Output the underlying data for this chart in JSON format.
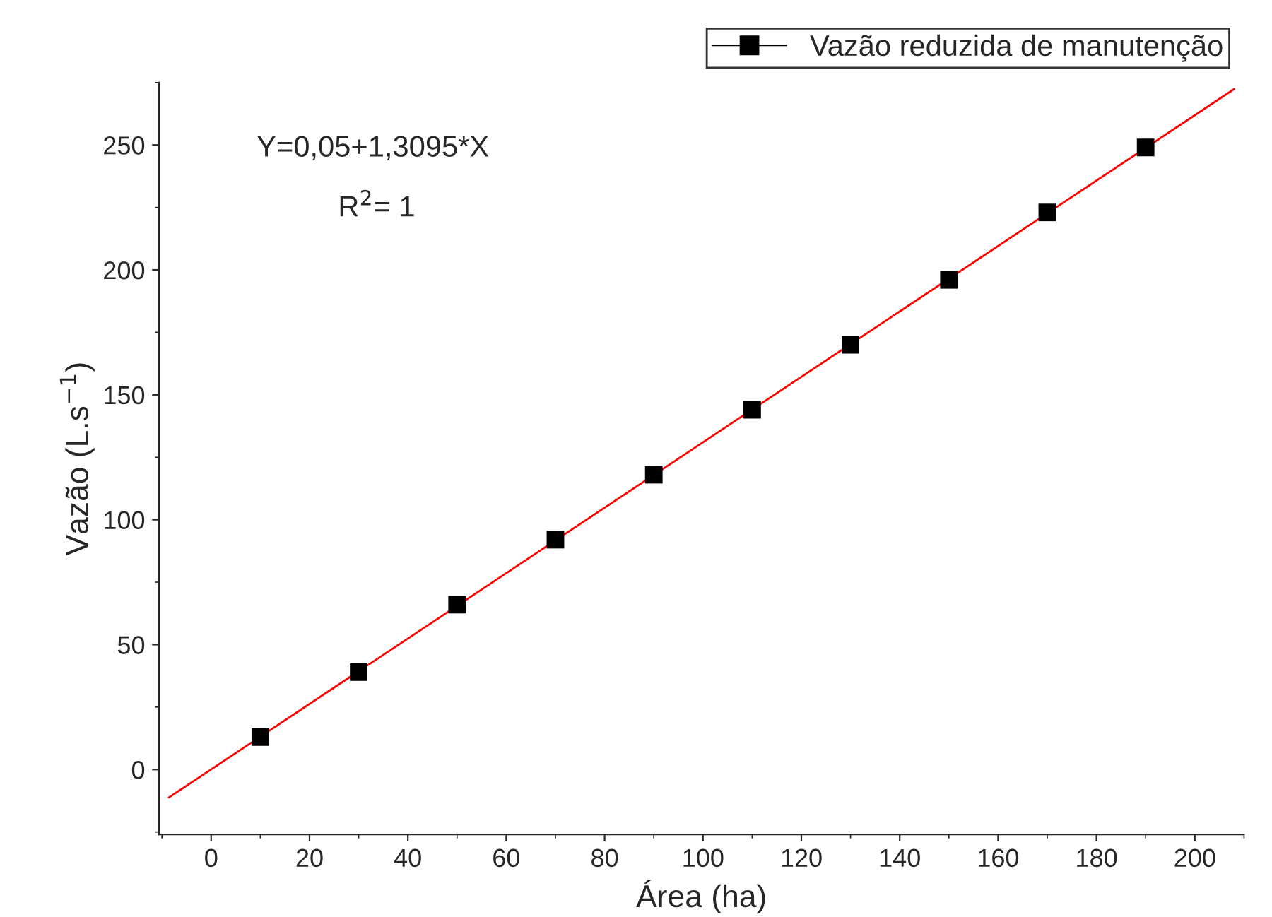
{
  "chart_data": {
    "type": "scatter",
    "xlabel": "Área (ha)",
    "ylabel": "Vazão (L.s$^{−1}$)",
    "x": [
      10,
      30,
      50,
      70,
      90,
      110,
      130,
      150,
      170,
      190
    ],
    "series": [
      {
        "name": "Vazão reduzida de manutenção",
        "color": "#000000",
        "marker": "square",
        "values": [
          13,
          39,
          66,
          92,
          118,
          144,
          170,
          196,
          223,
          249
        ]
      },
      {
        "type": "line",
        "color": "#ff0000",
        "x": [
          -8.6,
          208
        ],
        "values": [
          -11.2,
          272.4
        ]
      }
    ],
    "xlim": [
      -10.6,
      210
    ],
    "ylim": [
      -26,
      275
    ],
    "xticks": [
      0,
      20,
      40,
      60,
      80,
      100,
      120,
      140,
      160,
      180,
      200
    ],
    "yticks": [
      0,
      50,
      100,
      150,
      200,
      250
    ],
    "annotations": [
      "Y=0,05+1,3095*X",
      "R$^{2}$= 1"
    ],
    "legend": "top right",
    "grid": false
  }
}
